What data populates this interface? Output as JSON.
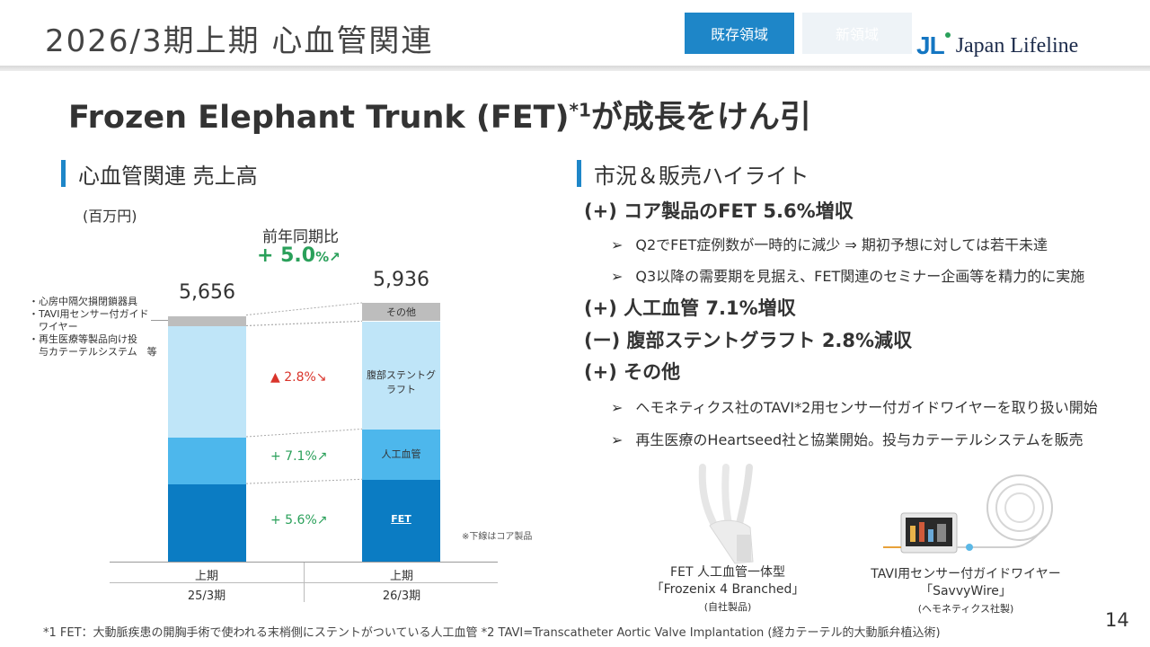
{
  "header": {
    "title": "2026/3期上期 心血管関連",
    "tab_existing": "既存領域",
    "tab_new": "新領域",
    "logo_mark": "JL",
    "logo_text": "Japan Lifeline"
  },
  "headline": {
    "text": "Frozen Elephant Trunk (FET)",
    "sup": "*1",
    "text2": "が成長をけん引"
  },
  "left_section": {
    "title": "心血管関連 売上高",
    "unit": "(百万円)",
    "yoy_label": "前年同期比",
    "yoy_value": "+ 5.0",
    "yoy_suffix": "%↗",
    "other_items": [
      "・心房中隔欠損閉鎖器具",
      "・TAVI用センサー付ガイド",
      "　ワイヤー",
      "・再生医療等製品向け投",
      "　与カテーテルシステム　等"
    ],
    "core_note": "※下線はコア製品"
  },
  "chart_data": {
    "type": "bar",
    "stacked": true,
    "categories": [
      "上期 25/3期",
      "上期 26/3期"
    ],
    "category_lines": [
      [
        "上期",
        "25/3期"
      ],
      [
        "上期",
        "26/3期"
      ]
    ],
    "totals": [
      5656,
      5936
    ],
    "total_labels": [
      "5,656",
      "5,936"
    ],
    "series": [
      {
        "name": "FET",
        "values": [
          1790,
          1890
        ],
        "color": "#0b7cc3",
        "change": "+ 5.6%↗",
        "change_color": "#2aa05a"
      },
      {
        "name": "人工血管",
        "values": [
          1075,
          1152
        ],
        "color": "#4db7ec",
        "change": "+ 7.1%↗",
        "change_color": "#2aa05a"
      },
      {
        "name": "腹部ステントグラフト",
        "values": [
          2546,
          2474
        ],
        "color": "#bfe5f8",
        "change": "▲ 2.8%↘",
        "change_color": "#d9342b"
      },
      {
        "name": "その他",
        "values": [
          245,
          420
        ],
        "color": "#bdbdbd",
        "change": "",
        "change_color": "#333333"
      }
    ],
    "segment_labels": [
      "FET",
      "人工血管",
      "腹部ステントグラフト",
      "その他"
    ]
  },
  "right_section": {
    "title": "市況＆販売ハイライト",
    "items": [
      {
        "main": "(+) コア製品のFET 5.6%増収",
        "subs": [
          "Q2でFET症例数が一時的に減少 ⇒ 期初予想に対しては若干未達",
          "Q3以降の需要期を見据え、FET関連のセミナー企画等を精力的に実施"
        ]
      },
      {
        "main": "(+) 人工血管 7.1%増収",
        "subs": []
      },
      {
        "main": "(ー) 腹部ステントグラフト 2.8%減収",
        "subs": []
      },
      {
        "main": "(+) その他",
        "subs": [
          "ヘモネティクス社のTAVI*2用センサー付ガイドワイヤーを取り扱い開始",
          "再生医療のHeartseed社と協業開始。投与カテーテルシステムを販売"
        ]
      }
    ],
    "bullet_glyph": "➢"
  },
  "products": [
    {
      "line1": "FET 人工血管一体型",
      "line2": "「Frozenix 4 Branched」",
      "line3": "(自社製品)"
    },
    {
      "line1": "TAVI用センサー付ガイドワイヤー",
      "line2": "「SavvyWire」",
      "line3": "(ヘモネティクス社製)"
    }
  ],
  "footnote": "*1 FET：大動脈疾患の開胸手術で使われる末梢側にステントがついている人工血管 *2 TAVI=Transcatheter Aortic Valve Implantation (経カテーテル的大動脈弁植込術)",
  "page_number": "14"
}
